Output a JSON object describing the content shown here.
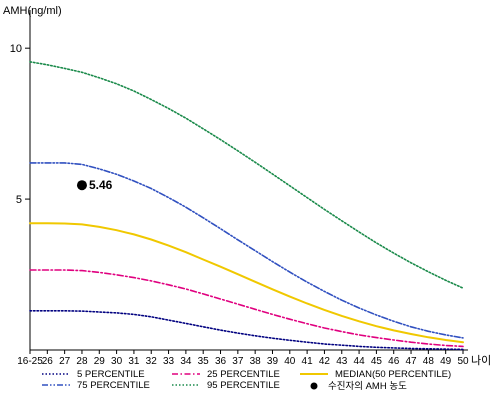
{
  "chart_data": {
    "type": "line",
    "ylabel": "AMH(ng/ml)",
    "xlabel": "나이",
    "ylim": [
      0,
      11
    ],
    "yticks": [
      5,
      10
    ],
    "categories": [
      "16-25",
      "26",
      "27",
      "28",
      "29",
      "30",
      "31",
      "32",
      "33",
      "34",
      "35",
      "36",
      "37",
      "38",
      "39",
      "40",
      "41",
      "42",
      "43",
      "44",
      "45",
      "46",
      "47",
      "48",
      "49",
      "50"
    ],
    "series": [
      {
        "name": "5 PERCENTILE",
        "color": "#000080",
        "dash": "dotted",
        "values": [
          1.3,
          1.3,
          1.3,
          1.29,
          1.26,
          1.23,
          1.18,
          1.1,
          0.99,
          0.88,
          0.77,
          0.66,
          0.56,
          0.47,
          0.39,
          0.32,
          0.26,
          0.2,
          0.16,
          0.12,
          0.09,
          0.07,
          0.05,
          0.04,
          0.03,
          0.02
        ]
      },
      {
        "name": "25 PERCENTILE",
        "color": "#e0007f",
        "dash": "dashdot",
        "values": [
          2.65,
          2.65,
          2.65,
          2.63,
          2.57,
          2.49,
          2.4,
          2.29,
          2.16,
          2.02,
          1.86,
          1.69,
          1.52,
          1.35,
          1.18,
          1.02,
          0.87,
          0.73,
          0.61,
          0.5,
          0.41,
          0.33,
          0.26,
          0.2,
          0.15,
          0.12
        ]
      },
      {
        "name": "MEDIAN(50 PERCENTILE)",
        "color": "#f0c800",
        "dash": "solid",
        "values": [
          4.2,
          4.2,
          4.19,
          4.16,
          4.08,
          3.97,
          3.83,
          3.66,
          3.46,
          3.24,
          3.0,
          2.76,
          2.51,
          2.26,
          2.01,
          1.77,
          1.54,
          1.33,
          1.13,
          0.95,
          0.79,
          0.65,
          0.53,
          0.42,
          0.33,
          0.26
        ]
      },
      {
        "name": "75 PERCENTILE",
        "color": "#3050c0",
        "dash": "dashdotdot",
        "values": [
          6.2,
          6.2,
          6.2,
          6.15,
          6.0,
          5.82,
          5.6,
          5.35,
          5.05,
          4.73,
          4.38,
          4.02,
          3.65,
          3.29,
          2.93,
          2.58,
          2.25,
          1.94,
          1.65,
          1.39,
          1.16,
          0.95,
          0.77,
          0.62,
          0.5,
          0.4
        ]
      },
      {
        "name": "95 PERCENTILE",
        "color": "#1a8a4a",
        "dash": "dotted",
        "values": [
          9.55,
          9.45,
          9.33,
          9.2,
          9.02,
          8.82,
          8.58,
          8.3,
          8.0,
          7.68,
          7.33,
          6.97,
          6.6,
          6.22,
          5.83,
          5.44,
          5.05,
          4.66,
          4.28,
          3.91,
          3.55,
          3.21,
          2.89,
          2.59,
          2.31,
          2.05
        ]
      }
    ],
    "point": {
      "label": "5.46",
      "x_index": 3,
      "y": 5.46,
      "color": "#000000"
    },
    "legend_point_label": "수진자의 AMH 농도",
    "legend_position": "bottom",
    "grid": false
  }
}
